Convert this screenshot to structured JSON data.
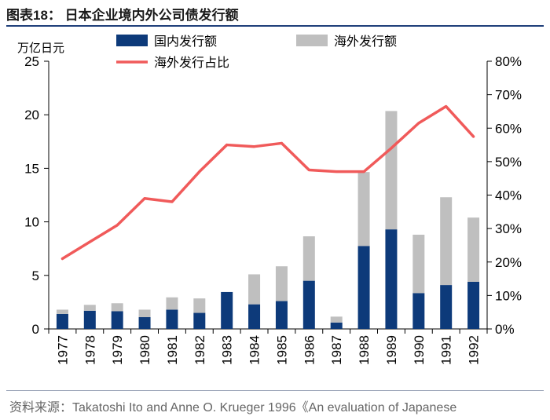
{
  "title": "图表18：  日本企业境内外公司债发行额",
  "source": "资料来源：Takatoshi Ito and Anne O. Krueger 1996《An evaluation of Japanese",
  "chart_data": {
    "type": "bar",
    "stacked": true,
    "unit_label": "万亿日元",
    "categories": [
      "1977",
      "1978",
      "1979",
      "1980",
      "1981",
      "1982",
      "1983",
      "1984",
      "1985",
      "1986",
      "1987",
      "1988",
      "1989",
      "1990",
      "1991",
      "1992"
    ],
    "series": [
      {
        "name": "国内发行额",
        "color": "#0d3a7a",
        "axis": "left",
        "values": [
          1.4,
          1.7,
          1.65,
          1.1,
          1.8,
          1.5,
          3.45,
          2.3,
          2.6,
          4.5,
          0.6,
          7.75,
          9.3,
          3.35,
          4.1,
          4.4
        ]
      },
      {
        "name": "海外发行额",
        "color": "#bfbfbf",
        "axis": "left",
        "values": [
          0.4,
          0.55,
          0.75,
          0.7,
          1.15,
          1.35,
          0.0,
          2.8,
          3.25,
          4.15,
          0.55,
          6.9,
          11.05,
          5.45,
          8.2,
          6.0
        ]
      },
      {
        "name": "海外发行占比",
        "type": "line",
        "color": "#f05a5a",
        "axis": "right",
        "values": [
          21,
          26,
          31,
          39,
          38,
          47,
          55,
          54.5,
          55.5,
          47.5,
          47,
          47,
          54,
          61.5,
          66.5,
          57.5
        ]
      }
    ],
    "left_axis": {
      "min": 0,
      "max": 25,
      "ticks": [
        0,
        5,
        10,
        15,
        20,
        25
      ],
      "tick_labels": [
        "0",
        "5",
        "10",
        "15",
        "20",
        "25"
      ]
    },
    "right_axis": {
      "min": 0,
      "max": 80,
      "ticks": [
        0,
        10,
        20,
        30,
        40,
        50,
        60,
        70,
        80
      ],
      "tick_labels": [
        "0%",
        "10%",
        "20%",
        "30%",
        "40%",
        "50%",
        "60%",
        "70%",
        "80%"
      ]
    },
    "legend_position": "top"
  }
}
